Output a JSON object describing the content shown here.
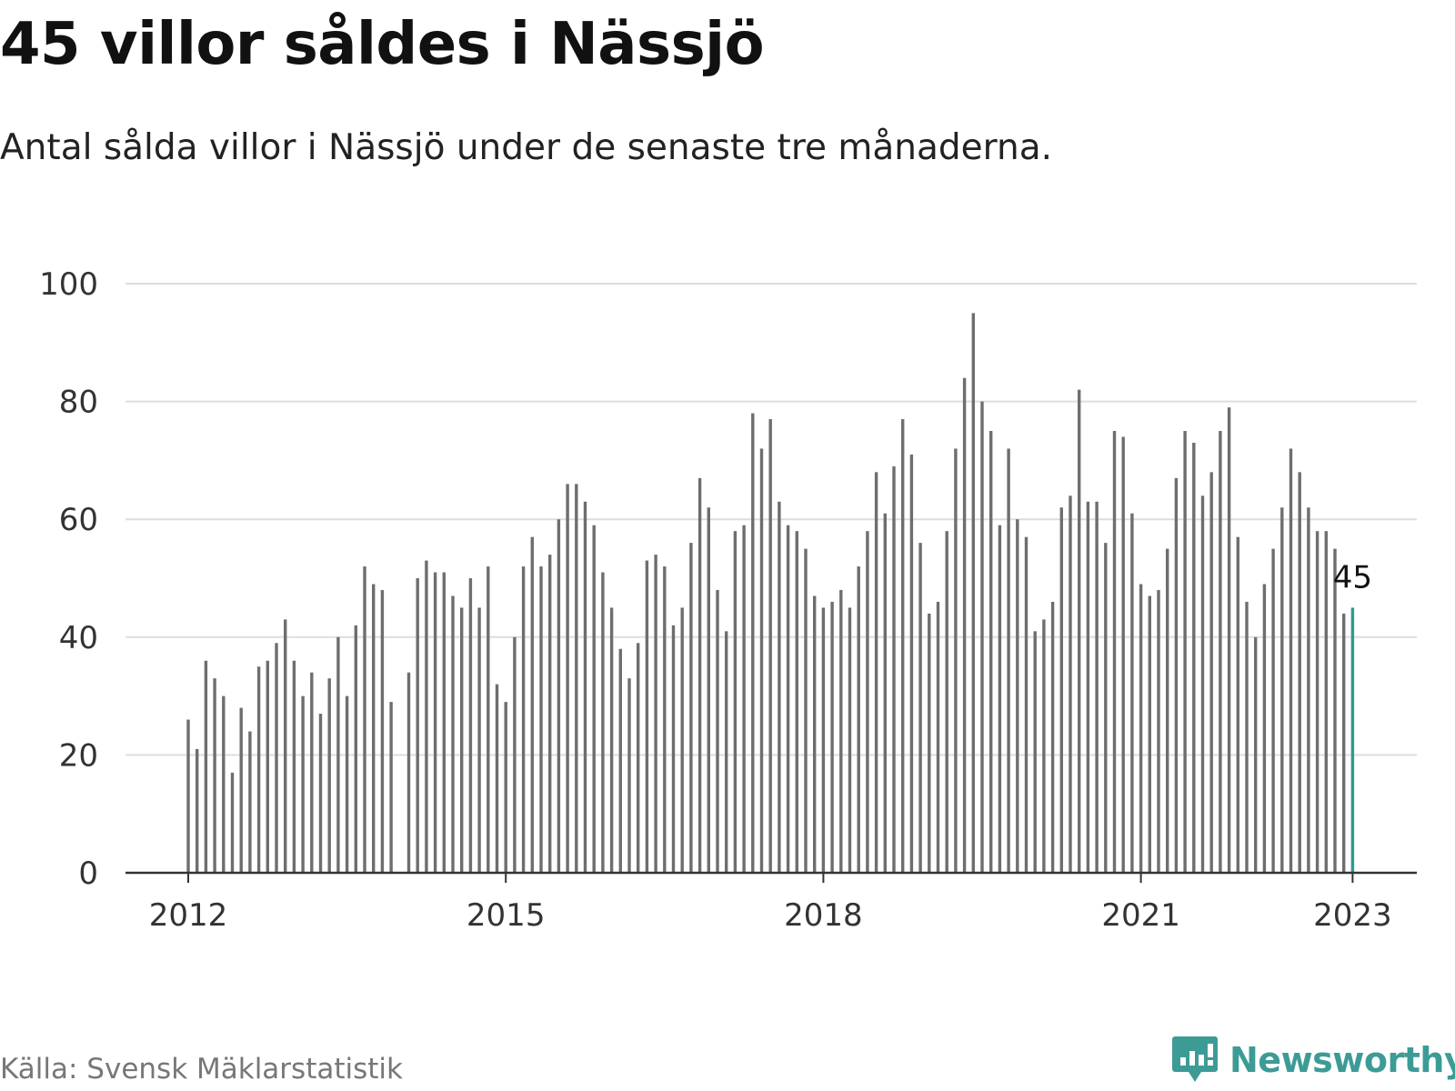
{
  "title": "45 villor såldes i Nässjö",
  "subtitle": "Antal sålda villor i Nässjö under de senaste tre månaderna.",
  "source": "Källa: Svensk Mäklarstatistik",
  "brand": {
    "name": "Newsworthy",
    "icon": "newsworthy-logo-icon",
    "color": "#3d9b96"
  },
  "colors": {
    "bar": "#6e6e6e",
    "highlight": "#2a9d8f",
    "grid": "#dddddd",
    "axis": "#333333"
  },
  "chart_data": {
    "type": "bar",
    "title": "45 villor såldes i Nässjö",
    "xlabel": "",
    "ylabel": "",
    "ylim": [
      0,
      100
    ],
    "yticks": [
      0,
      20,
      40,
      60,
      80,
      100
    ],
    "xticks": [
      "2012",
      "2015",
      "2018",
      "2021",
      "2023"
    ],
    "grid": true,
    "start": "2012-01",
    "end": "2023-01",
    "highlight": {
      "date": "2023-01",
      "value": 45,
      "label": "45"
    },
    "values": [
      26,
      21,
      36,
      33,
      30,
      17,
      28,
      24,
      35,
      36,
      39,
      43,
      36,
      30,
      34,
      27,
      33,
      40,
      30,
      42,
      52,
      49,
      48,
      29,
      null,
      34,
      50,
      53,
      51,
      51,
      47,
      45,
      50,
      45,
      52,
      32,
      29,
      40,
      52,
      57,
      52,
      54,
      60,
      66,
      66,
      63,
      59,
      51,
      45,
      38,
      33,
      39,
      53,
      54,
      52,
      42,
      45,
      56,
      67,
      62,
      48,
      41,
      58,
      59,
      78,
      72,
      77,
      63,
      59,
      58,
      55,
      47,
      45,
      46,
      48,
      45,
      52,
      58,
      68,
      61,
      69,
      77,
      71,
      56,
      44,
      46,
      58,
      72,
      84,
      95,
      80,
      75,
      59,
      72,
      60,
      57,
      41,
      43,
      46,
      62,
      64,
      82,
      63,
      63,
      56,
      75,
      74,
      61,
      49,
      47,
      48,
      55,
      67,
      75,
      73,
      64,
      68,
      75,
      79,
      57,
      46,
      40,
      49,
      55,
      62,
      72,
      68,
      62,
      58,
      58,
      55,
      44,
      45
    ]
  }
}
